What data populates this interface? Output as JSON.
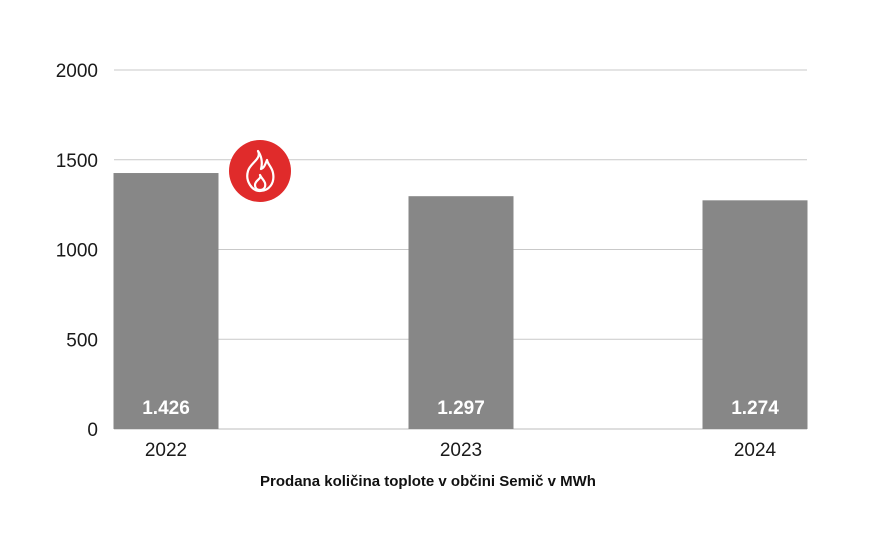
{
  "chart_data": {
    "type": "bar",
    "categories": [
      "2022",
      "2023",
      "2024"
    ],
    "values": [
      1426,
      1297,
      1274
    ],
    "data_labels": [
      "1.426",
      "1.297",
      "1.274"
    ],
    "title": "",
    "xlabel": "Prodana količina toplote v občini Semič v MWh",
    "ylabel": "",
    "ylim": [
      0,
      2000
    ],
    "yticks": [
      0,
      500,
      1000,
      1500,
      2000
    ],
    "ytick_labels": [
      "0",
      "500",
      "1000",
      "1500",
      "2000"
    ],
    "grid": true,
    "legend": "none",
    "bar_color": "#878787",
    "grid_color": "#c9c9c9",
    "badge": {
      "icon": "flame-icon",
      "color": "#e02b2b",
      "category": "2022"
    }
  }
}
